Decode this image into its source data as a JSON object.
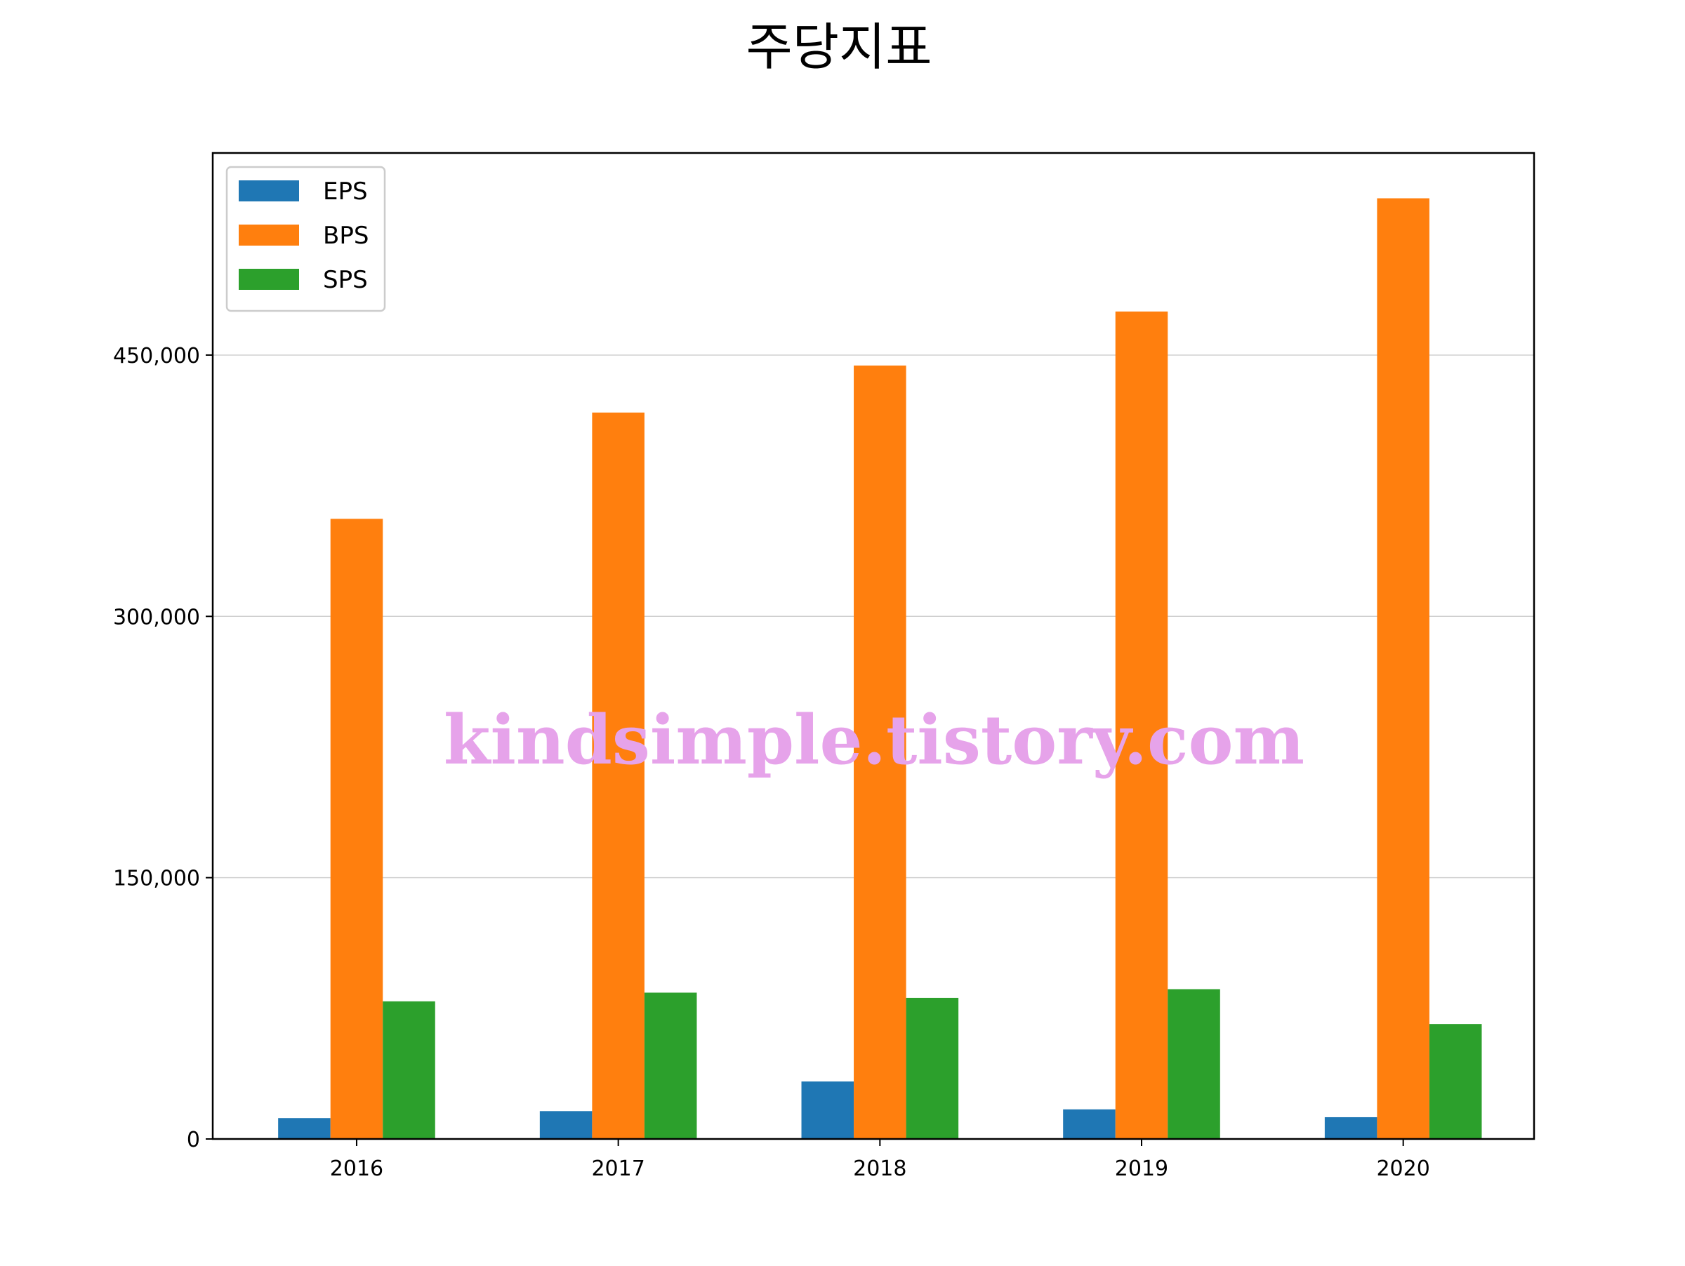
{
  "chart_data": {
    "type": "bar",
    "title": "주당지표",
    "xlabel": "",
    "ylabel": "",
    "categories": [
      "2016",
      "2017",
      "2018",
      "2019",
      "2020"
    ],
    "series": [
      {
        "name": "EPS",
        "color": "#1f77b4",
        "values": [
          12000,
          16000,
          33000,
          17000,
          12500
        ]
      },
      {
        "name": "BPS",
        "color": "#ff7f0e",
        "values": [
          356000,
          417000,
          444000,
          475000,
          540000
        ]
      },
      {
        "name": "SPS",
        "color": "#2ca02c",
        "values": [
          79000,
          84000,
          81000,
          86000,
          66000
        ]
      }
    ],
    "ylim": [
      0,
      566000
    ],
    "yticks": [
      0,
      150000,
      300000,
      450000
    ],
    "ytick_labels": [
      "0",
      "150,000",
      "300,000",
      "450,000"
    ],
    "grid": "horizontal",
    "legend_position": "top-left"
  },
  "watermark": "kindsimple.tistory.com"
}
